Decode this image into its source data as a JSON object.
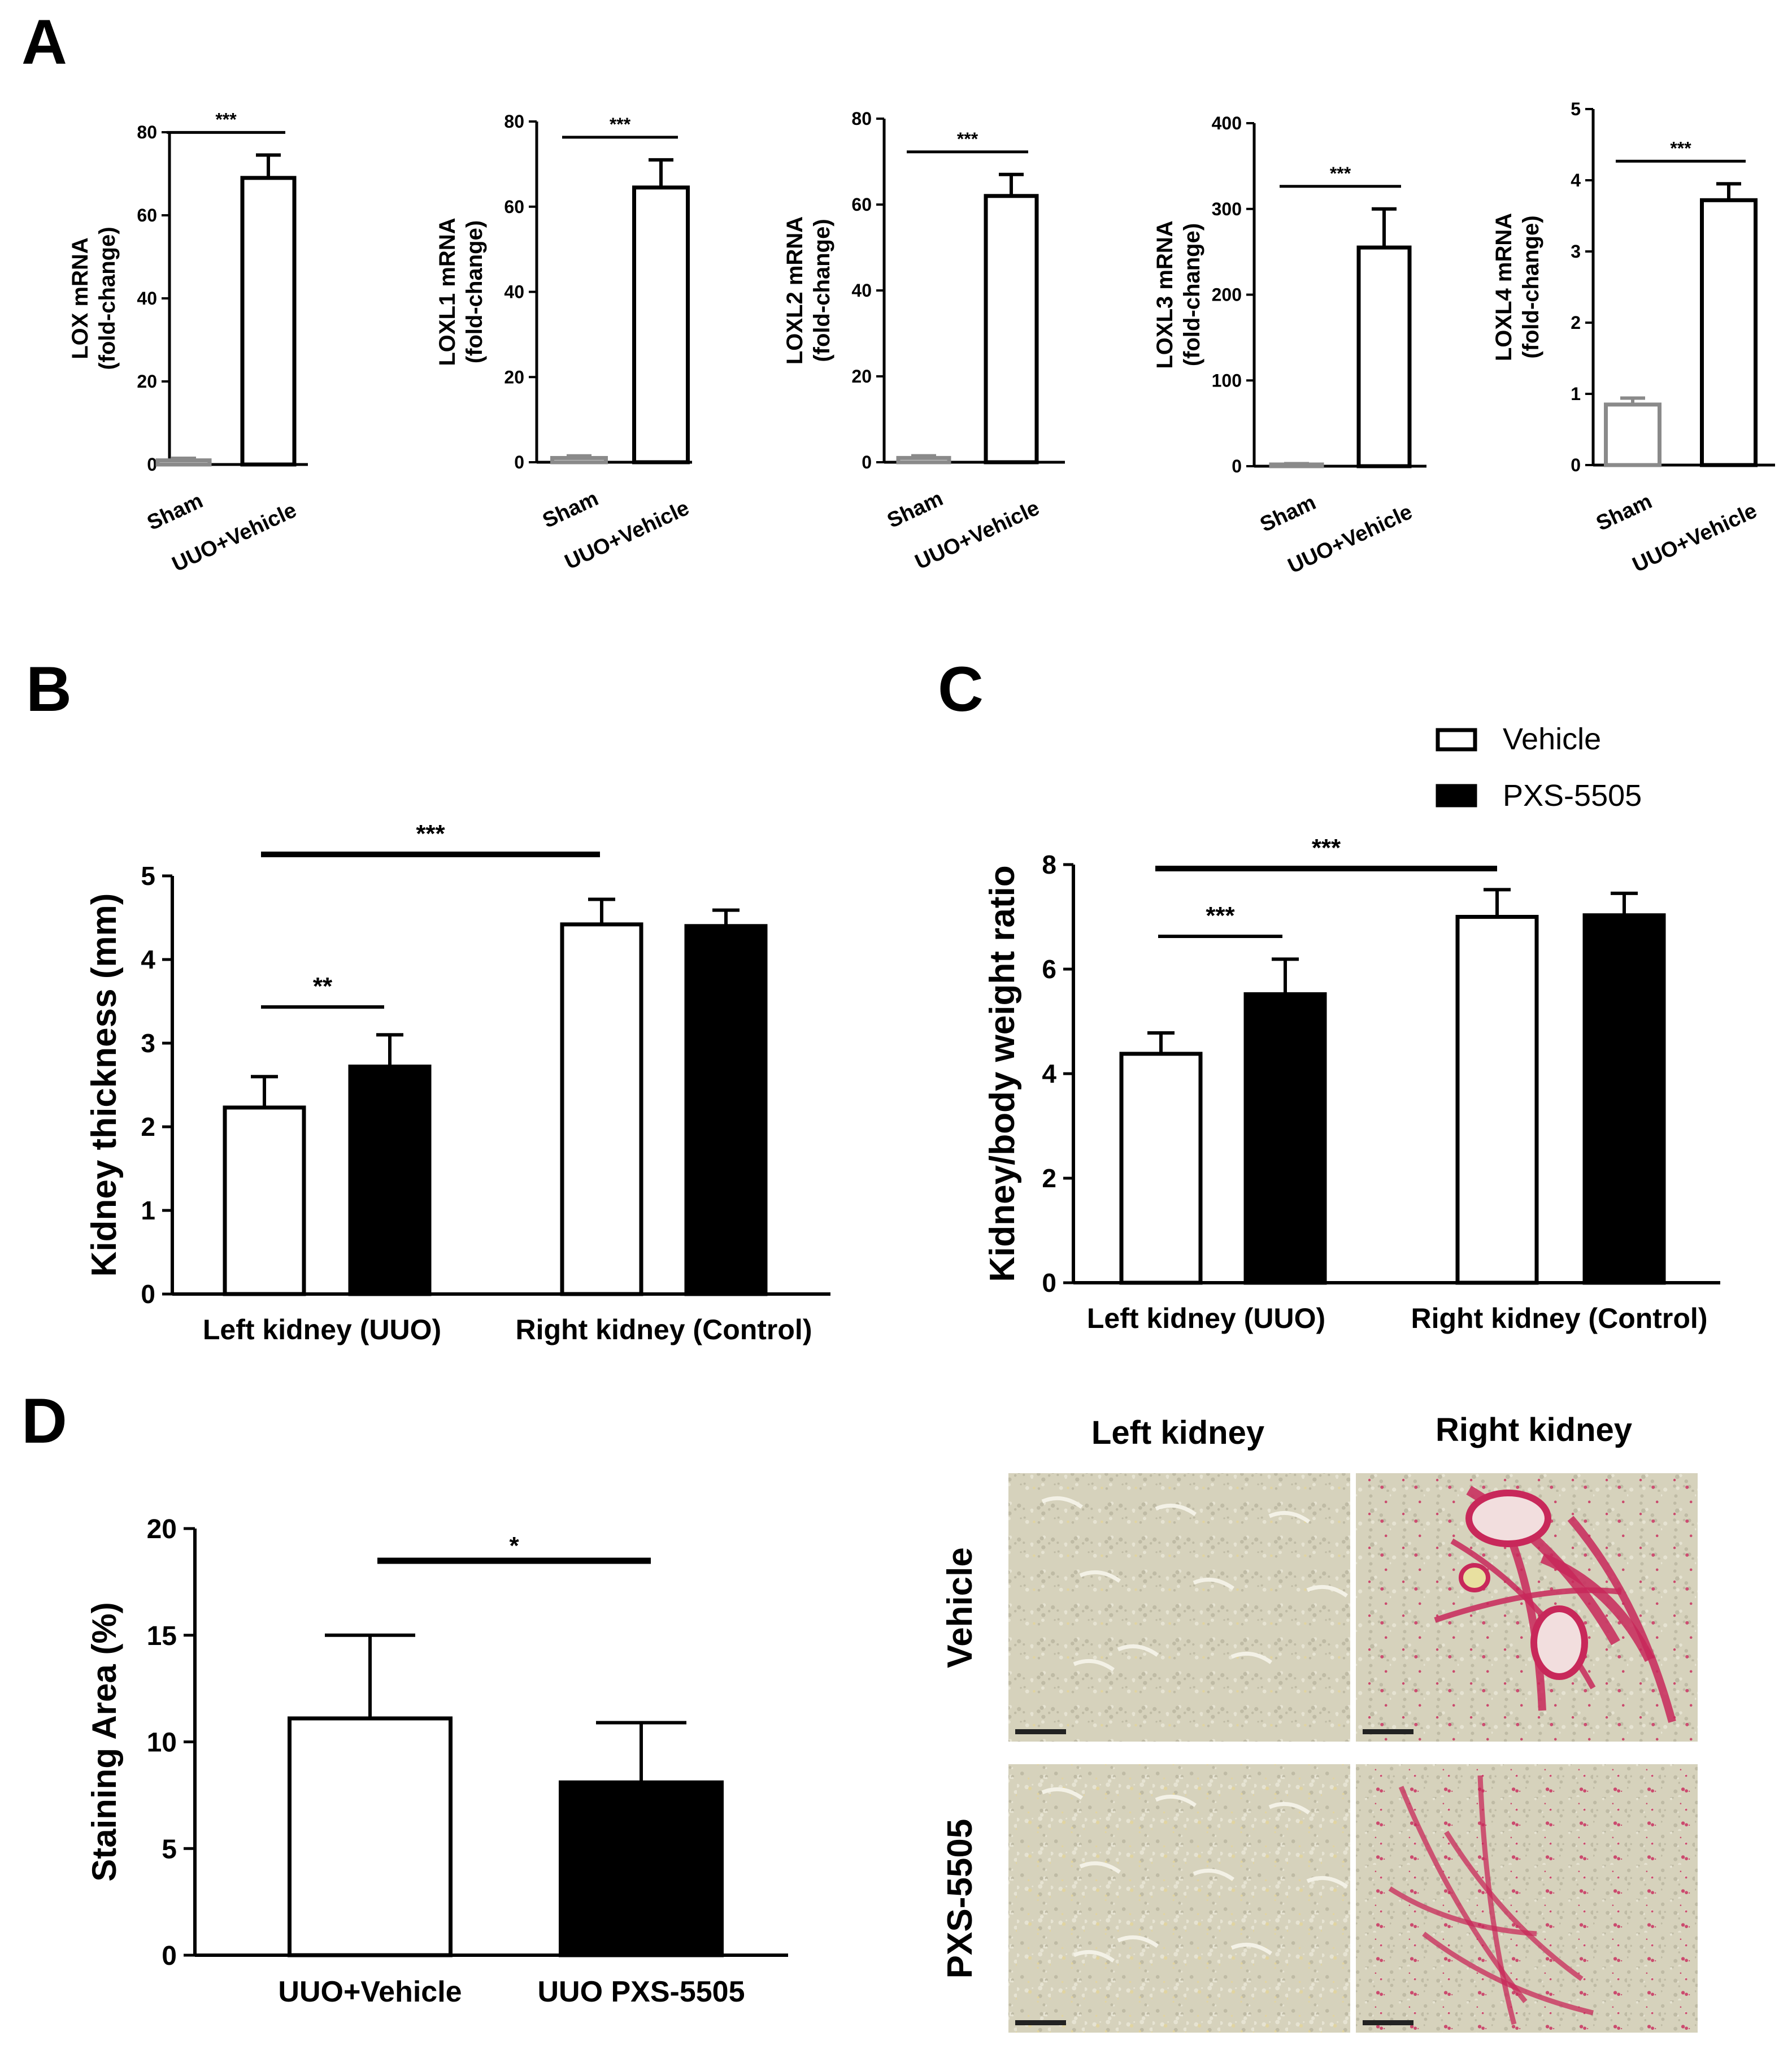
{
  "panels": {
    "a": "A",
    "b": "B",
    "c": "C",
    "d": "D"
  },
  "chart_data": [
    {
      "panel": "A",
      "type": "bar",
      "ylabel": [
        "LOX mRNA",
        "(fold-change)"
      ],
      "categories": [
        "Sham",
        "UUO+Vehicle"
      ],
      "values": [
        1,
        69
      ],
      "errors": [
        0.5,
        5.5
      ],
      "bar_colors": [
        "#8a8a8a",
        "#000000"
      ],
      "ylim": [
        0,
        80
      ],
      "yticks": [
        "0",
        "20",
        "40",
        "60",
        "80"
      ],
      "sig": "***"
    },
    {
      "panel": "A",
      "type": "bar",
      "ylabel": [
        "LOXL1 mRNA",
        "(fold-change)"
      ],
      "categories": [
        "Sham",
        "UUO+Vehicle"
      ],
      "values": [
        1,
        64.5
      ],
      "errors": [
        0.5,
        6.5
      ],
      "bar_colors": [
        "#8a8a8a",
        "#000000"
      ],
      "ylim": [
        0,
        80
      ],
      "yticks": [
        "0",
        "20",
        "40",
        "60",
        "80"
      ],
      "sig": "***"
    },
    {
      "panel": "A",
      "type": "bar",
      "ylabel": [
        "LOXL2 mRNA",
        "(fold-change)"
      ],
      "categories": [
        "Sham",
        "UUO+Vehicle"
      ],
      "values": [
        1,
        62
      ],
      "errors": [
        0.5,
        5
      ],
      "bar_colors": [
        "#8a8a8a",
        "#000000"
      ],
      "ylim": [
        0,
        80
      ],
      "yticks": [
        "0",
        "20",
        "40",
        "60",
        "80"
      ],
      "sig": "***"
    },
    {
      "panel": "A",
      "type": "bar",
      "ylabel": [
        "LOXL3 mRNA",
        "(fold-change)"
      ],
      "categories": [
        "Sham",
        "UUO+Vehicle"
      ],
      "values": [
        2,
        255
      ],
      "errors": [
        1,
        45
      ],
      "bar_colors": [
        "#8a8a8a",
        "#000000"
      ],
      "ylim": [
        0,
        400
      ],
      "yticks": [
        "0",
        "100",
        "200",
        "300",
        "400"
      ],
      "sig": "***"
    },
    {
      "panel": "A",
      "type": "bar",
      "ylabel": [
        "LOXL4 mRNA",
        "(fold-change)"
      ],
      "categories": [
        "Sham",
        "UUO+Vehicle"
      ],
      "values": [
        0.85,
        3.72
      ],
      "errors": [
        0.09,
        0.23
      ],
      "bar_colors": [
        "#8a8a8a",
        "#000000"
      ],
      "ylim": [
        0,
        5
      ],
      "yticks": [
        "0",
        "1",
        "2",
        "3",
        "4",
        "5"
      ],
      "sig": "***"
    },
    {
      "panel": "B",
      "type": "bar",
      "ylabel": "Kidney thickness (mm)",
      "categories": [
        "Left kidney (UUO)",
        "Right kidney (Control)"
      ],
      "series": [
        {
          "name": "Vehicle",
          "values": [
            2.23,
            4.42
          ],
          "errors": [
            0.37,
            0.3
          ]
        },
        {
          "name": "PXS-5505",
          "values": [
            2.72,
            4.4
          ],
          "errors": [
            0.38,
            0.19
          ]
        }
      ],
      "ylim": [
        0,
        5
      ],
      "yticks": [
        "0",
        "1",
        "2",
        "3",
        "4",
        "5"
      ],
      "annotations": [
        "**",
        "***"
      ]
    },
    {
      "panel": "C",
      "type": "bar",
      "ylabel": "Kidney/body weight ratio",
      "categories": [
        "Left kidney (UUO)",
        "Right kidney (Control)"
      ],
      "series": [
        {
          "name": "Vehicle",
          "values": [
            4.38,
            7.0
          ],
          "errors": [
            0.4,
            0.52
          ]
        },
        {
          "name": "PXS-5505",
          "values": [
            5.52,
            7.03
          ],
          "errors": [
            0.67,
            0.42
          ]
        }
      ],
      "ylim": [
        0,
        8
      ],
      "yticks": [
        "0",
        "2",
        "4",
        "6",
        "8"
      ],
      "legend": [
        "Vehicle",
        "PXS-5505"
      ],
      "legend_position": "top-right",
      "annotations": [
        "***",
        "***"
      ]
    },
    {
      "panel": "D",
      "type": "bar",
      "ylabel": "Staining Area (%)",
      "categories": [
        "UUO+Vehicle",
        "UUO PXS-5505"
      ],
      "values": [
        11.1,
        8.1
      ],
      "errors": [
        3.9,
        2.8
      ],
      "bar_colors": [
        "#ffffff",
        "#000000"
      ],
      "ylim": [
        0,
        20
      ],
      "yticks": [
        "0",
        "5",
        "10",
        "15",
        "20"
      ],
      "sig": "*"
    }
  ],
  "micrographs": {
    "col_labels": [
      "Left kidney",
      "Right kidney"
    ],
    "row_labels": [
      "Vehicle",
      "PXS-5505"
    ]
  },
  "colors": {
    "stain_bg": "#d6d2bc",
    "stain_red": "#c8285a",
    "stain_yellow": "#e3d49a"
  }
}
